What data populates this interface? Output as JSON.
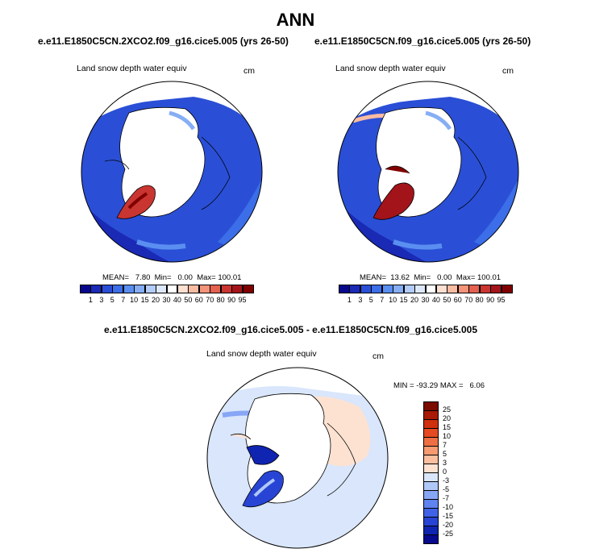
{
  "page": {
    "title": "ANN"
  },
  "panels": [
    {
      "id": "left",
      "case_title": "e.e11.E1850C5CN.2XCO2.f09_g16.cice5.005 (yrs 26-50)",
      "variable": "Land snow depth water equiv",
      "units": "cm",
      "stats": "MEAN=   7.80  Min=   0.00  Max= 100.01",
      "colorbar_labels": [
        "1",
        "3",
        "5",
        "7",
        "10",
        "15",
        "20",
        "30",
        "40",
        "50",
        "60",
        "70",
        "80",
        "90",
        "95"
      ]
    },
    {
      "id": "right",
      "case_title": "e.e11.E1850C5CN.f09_g16.cice5.005 (yrs 26-50)",
      "variable": "Land snow depth water equiv",
      "units": "cm",
      "stats": "MEAN=  13.62  Min=   0.00  Max= 100.01",
      "colorbar_labels": [
        "1",
        "3",
        "5",
        "7",
        "10",
        "15",
        "20",
        "30",
        "40",
        "50",
        "60",
        "70",
        "80",
        "90",
        "95"
      ]
    },
    {
      "id": "diff",
      "case_title": "e.e11.E1850C5CN.2XCO2.f09_g16.cice5.005 - e.e11.E1850C5CN.f09_g16.cice5.005",
      "variable": "Land snow depth water equiv",
      "units": "cm",
      "stats": "MIN = -93.29 MAX =   6.06",
      "colorbar_labels": [
        "25",
        "20",
        "15",
        "10",
        "7",
        "5",
        "3",
        "0",
        "-3",
        "-5",
        "-7",
        "-10",
        "-15",
        "-20",
        "-25"
      ]
    }
  ],
  "colors": {
    "abs_scale": [
      "#08088c",
      "#1a2ab5",
      "#2a4fd6",
      "#3b6ee8",
      "#5a8ef0",
      "#86aef5",
      "#b3cdf8",
      "#dde9fb",
      "#ffffff",
      "#fde0d2",
      "#f9bca3",
      "#f2937a",
      "#e4604f",
      "#c93530",
      "#a3141a",
      "#800000"
    ],
    "diff_scale": [
      "#070a8c",
      "#0f24b0",
      "#2744d4",
      "#3f62e6",
      "#5f84f0",
      "#87a6f5",
      "#b0c8f8",
      "#d9e6fb",
      "#fde2d2",
      "#fbbf9f",
      "#f79a71",
      "#ef6f44",
      "#e54a22",
      "#cf300d",
      "#a81a05",
      "#7a0c00"
    ]
  },
  "chart_data": [
    {
      "type": "heatmap",
      "title": "e.e11.E1850C5CN.2XCO2.f09_g16.cice5.005 (yrs 26-50)",
      "variable": "Land snow depth water equiv",
      "units": "cm",
      "projection": "north-polar-stereographic",
      "mean": 7.8,
      "min": 0.0,
      "max": 100.01,
      "levels": [
        1,
        3,
        5,
        7,
        10,
        15,
        20,
        30,
        40,
        50,
        60,
        70,
        80,
        90,
        95
      ],
      "colorbar": "horizontal-bottom"
    },
    {
      "type": "heatmap",
      "title": "e.e11.E1850C5CN.f09_g16.cice5.005 (yrs 26-50)",
      "variable": "Land snow depth water equiv",
      "units": "cm",
      "projection": "north-polar-stereographic",
      "mean": 13.62,
      "min": 0.0,
      "max": 100.01,
      "levels": [
        1,
        3,
        5,
        7,
        10,
        15,
        20,
        30,
        40,
        50,
        60,
        70,
        80,
        90,
        95
      ],
      "colorbar": "horizontal-bottom"
    },
    {
      "type": "heatmap",
      "title": "e.e11.E1850C5CN.2XCO2.f09_g16.cice5.005 - e.e11.E1850C5CN.f09_g16.cice5.005",
      "variable": "Land snow depth water equiv",
      "units": "cm",
      "projection": "north-polar-stereographic",
      "min": -93.29,
      "max": 6.06,
      "levels": [
        -25,
        -20,
        -15,
        -10,
        -7,
        -5,
        -3,
        0,
        3,
        5,
        7,
        10,
        15,
        20,
        25
      ],
      "colorbar": "vertical-right"
    }
  ]
}
